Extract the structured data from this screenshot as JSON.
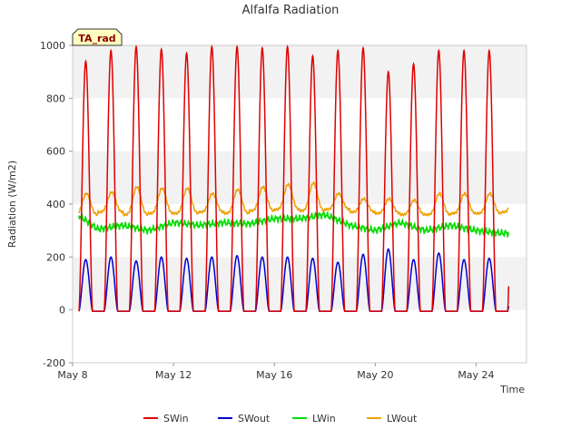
{
  "chart_data": {
    "type": "line",
    "title": "Alfalfa Radiation",
    "xlabel": "Time",
    "ylabel": "Radiation (W/m2)",
    "annotation": "TA_rad",
    "ylim": [
      -200,
      1000
    ],
    "yticks": [
      -200,
      0,
      200,
      400,
      600,
      800,
      1000
    ],
    "xlim_days": [
      8,
      26
    ],
    "xticks": [
      {
        "day": 8,
        "label": "May 8"
      },
      {
        "day": 12,
        "label": "May 12"
      },
      {
        "day": 16,
        "label": "May 16"
      },
      {
        "day": 20,
        "label": "May 20"
      },
      {
        "day": 24,
        "label": "May 24"
      }
    ],
    "data_start_day": 8.25,
    "data_end_day": 25.3,
    "grid": "horizontal bands",
    "legend_position": "bottom",
    "colors": {
      "SWin": "#e00000",
      "SWout": "#0000d0",
      "LWin": "#00dd00",
      "LWout": "#f0a000"
    },
    "series": [
      {
        "name": "SWin",
        "description_daily_peak_per_day": true,
        "daily_peaks": [
          940,
          980,
          995,
          985,
          970,
          995,
          995,
          990,
          995,
          960,
          980,
          990,
          900,
          930,
          980,
          980,
          980
        ],
        "night_value": -5
      },
      {
        "name": "SWout",
        "daily_peaks": [
          190,
          200,
          185,
          200,
          195,
          200,
          205,
          200,
          200,
          195,
          180,
          210,
          230,
          190,
          215,
          190,
          195
        ],
        "night_value": -5
      },
      {
        "name": "LWin",
        "daily_values": [
          375,
          305,
          320,
          300,
          330,
          320,
          330,
          325,
          345,
          345,
          360,
          320,
          300,
          330,
          300,
          320,
          300,
          290
        ]
      },
      {
        "name": "LWout",
        "daily_min": [
          360,
          370,
          360,
          365,
          365,
          370,
          365,
          375,
          380,
          375,
          380,
          370,
          365,
          360,
          360,
          365,
          365,
          370
        ],
        "daily_max": [
          440,
          445,
          465,
          460,
          460,
          440,
          455,
          465,
          475,
          480,
          440,
          420,
          420,
          415,
          440,
          440,
          440,
          440
        ]
      }
    ]
  },
  "legend": [
    {
      "label": "SWin",
      "color": "#e00000"
    },
    {
      "label": "SWout",
      "color": "#0000d0"
    },
    {
      "label": "LWin",
      "color": "#00dd00"
    },
    {
      "label": "LWout",
      "color": "#f0a000"
    }
  ]
}
